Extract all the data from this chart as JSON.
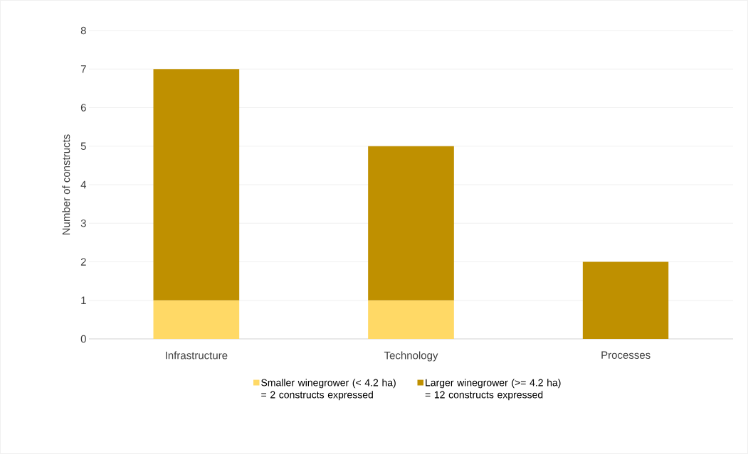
{
  "chart_data": {
    "type": "bar",
    "stacked": true,
    "categories": [
      "Infrastructure",
      "Technology",
      "Processes"
    ],
    "series": [
      {
        "name": "Smaller winegrower (< 4.2 ha) = 2 constructs expressed",
        "color": "#ffd966",
        "values": [
          1,
          1,
          0
        ]
      },
      {
        "name": "Larger winegrower (>= 4.2 ha) = 12 constructs expressed",
        "color": "#bf9000",
        "values": [
          6,
          4,
          2
        ]
      }
    ],
    "ylabel": "Number of constructs",
    "ylim": [
      0,
      8
    ],
    "yticks": [
      0,
      1,
      2,
      3,
      4,
      5,
      6,
      7,
      8
    ],
    "grid": "y",
    "legend": "bottom"
  }
}
